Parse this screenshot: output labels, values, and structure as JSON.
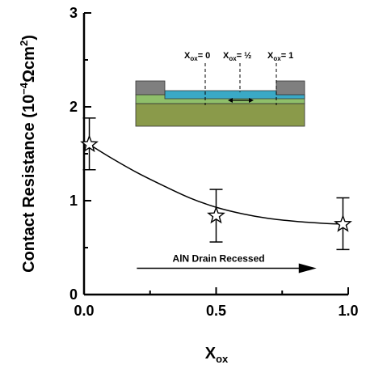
{
  "chart_data": {
    "type": "scatter",
    "xlabel": "X",
    "xlabel_sub": "ox",
    "ylabel": "Contact Resistance (10",
    "ylabel_sup": "−4",
    "ylabel_unit": "Ωcm",
    "ylabel_unit_sup": "2",
    "ylabel_close": ")",
    "xlim": [
      0.0,
      1.0
    ],
    "ylim": [
      0,
      3
    ],
    "xticks": [
      "0.0",
      "0.5",
      "1.0"
    ],
    "yticks": [
      "0",
      "1",
      "2",
      "3"
    ],
    "xtick_values": [
      0.0,
      0.5,
      1.0
    ],
    "ytick_values": [
      0,
      1,
      2,
      3
    ],
    "grid": false,
    "marker": "star",
    "series": [
      {
        "x": [
          0.02,
          0.5,
          0.98
        ],
        "y": [
          1.6,
          0.84,
          0.75
        ],
        "err_low": [
          1.33,
          0.56,
          0.48
        ],
        "err_high": [
          1.88,
          1.12,
          1.03
        ]
      }
    ],
    "fit_curve": {
      "x": [
        0.02,
        0.1,
        0.2,
        0.3,
        0.4,
        0.5,
        0.6,
        0.7,
        0.8,
        0.9,
        0.98
      ],
      "y": [
        1.6,
        1.46,
        1.3,
        1.16,
        1.03,
        0.93,
        0.86,
        0.81,
        0.78,
        0.76,
        0.75
      ]
    },
    "annotation": {
      "arrow_text": "AlN Drain Recessed",
      "arrow_x": [
        0.2,
        0.88
      ],
      "arrow_y": 0.28
    },
    "inset": {
      "labels": [
        {
          "main": "X",
          "sub": "ox",
          "eq": "= 0"
        },
        {
          "main": "X",
          "sub": "ox",
          "eq": "= ½"
        },
        {
          "main": "X",
          "sub": "ox",
          "eq": "= 1"
        }
      ],
      "colors": {
        "contact": "#7f7f7f",
        "oxide": "#3aa9c6",
        "barrier": "#8fbf6a",
        "substrate": "#8a9a4a"
      }
    }
  }
}
